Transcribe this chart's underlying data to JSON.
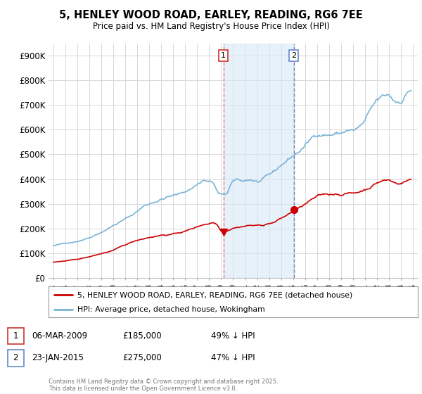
{
  "title_line1": "5, HENLEY WOOD ROAD, EARLEY, READING, RG6 7EE",
  "title_line2": "Price paid vs. HM Land Registry's House Price Index (HPI)",
  "ylim": [
    0,
    950000
  ],
  "yticks": [
    0,
    100000,
    200000,
    300000,
    400000,
    500000,
    600000,
    700000,
    800000,
    900000
  ],
  "ytick_labels": [
    "£0",
    "£100K",
    "£200K",
    "£300K",
    "£400K",
    "£500K",
    "£600K",
    "£700K",
    "£800K",
    "£900K"
  ],
  "xlim_left": 1994.6,
  "xlim_right": 2025.4,
  "hpi_color": "#7ab4d8",
  "price_color": "#cc0000",
  "sale1_date": 2009.18,
  "sale1_price": 185000,
  "sale2_date": 2015.06,
  "sale2_price": 275000,
  "legend_line1": "5, HENLEY WOOD ROAD, EARLEY, READING, RG6 7EE (detached house)",
  "legend_line2": "HPI: Average price, detached house, Wokingham",
  "footnote": "Contains HM Land Registry data © Crown copyright and database right 2025.\nThis data is licensed under the Open Government Licence v3.0.",
  "bg_color": "#ffffff",
  "grid_color": "#d8d8d8",
  "shade_color": "#d8e8f5",
  "shade_alpha": 0.6,
  "vline1_color": "#e08080",
  "vline2_color": "#8080c0"
}
